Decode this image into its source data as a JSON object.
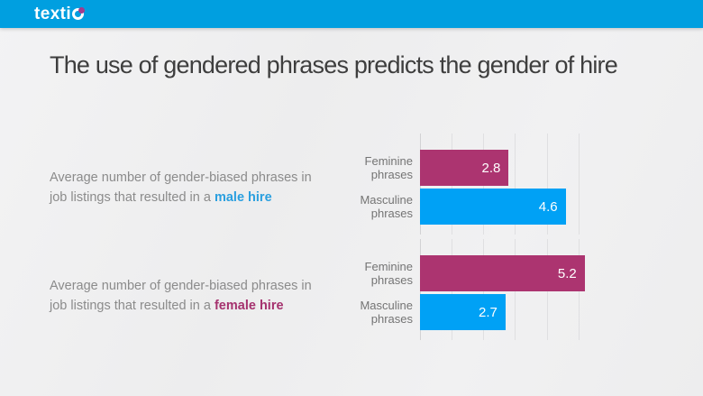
{
  "header": {
    "logo_text": "texti",
    "bar_color": "#009fe0",
    "logo_dot_color": "#a23b8e"
  },
  "title": "The use of gendered phrases predicts the gender of hire",
  "sections": [
    {
      "line1": "Average number of gender-biased phrases in",
      "line2": "job listings that resulted in a",
      "highlight": "male hire",
      "highlight_color": "#2a9fdf"
    },
    {
      "line1": "Average number of gender-biased phrases in",
      "line2": "job listings that resulted in a",
      "highlight": "female hire",
      "highlight_color": "#a5326e"
    }
  ],
  "chart_data": [
    {
      "type": "bar",
      "orientation": "horizontal",
      "title": "Average number of gender-biased phrases in job listings that resulted in a male hire",
      "categories": [
        "Feminine phrases",
        "Masculine phrases"
      ],
      "values": [
        2.8,
        4.6
      ],
      "data_labels": [
        "2.8",
        "4.6"
      ],
      "colors": [
        "#ac3470",
        "#00a1f5"
      ],
      "xlim": [
        0,
        7
      ],
      "gridlines": [
        0,
        1,
        2,
        3,
        4,
        5
      ],
      "legend_position": "none",
      "grid": "vertical-light"
    },
    {
      "type": "bar",
      "orientation": "horizontal",
      "title": "Average number of gender-biased phrases in job listings that resulted in a female hire",
      "categories": [
        "Feminine phrases",
        "Masculine phrases"
      ],
      "values": [
        5.2,
        2.7
      ],
      "data_labels": [
        "5.2",
        "2.7"
      ],
      "colors": [
        "#ac3470",
        "#00a1f5"
      ],
      "xlim": [
        0,
        7
      ],
      "gridlines": [
        0,
        1,
        2,
        3,
        4,
        5
      ],
      "legend_position": "none",
      "grid": "vertical-light"
    }
  ]
}
